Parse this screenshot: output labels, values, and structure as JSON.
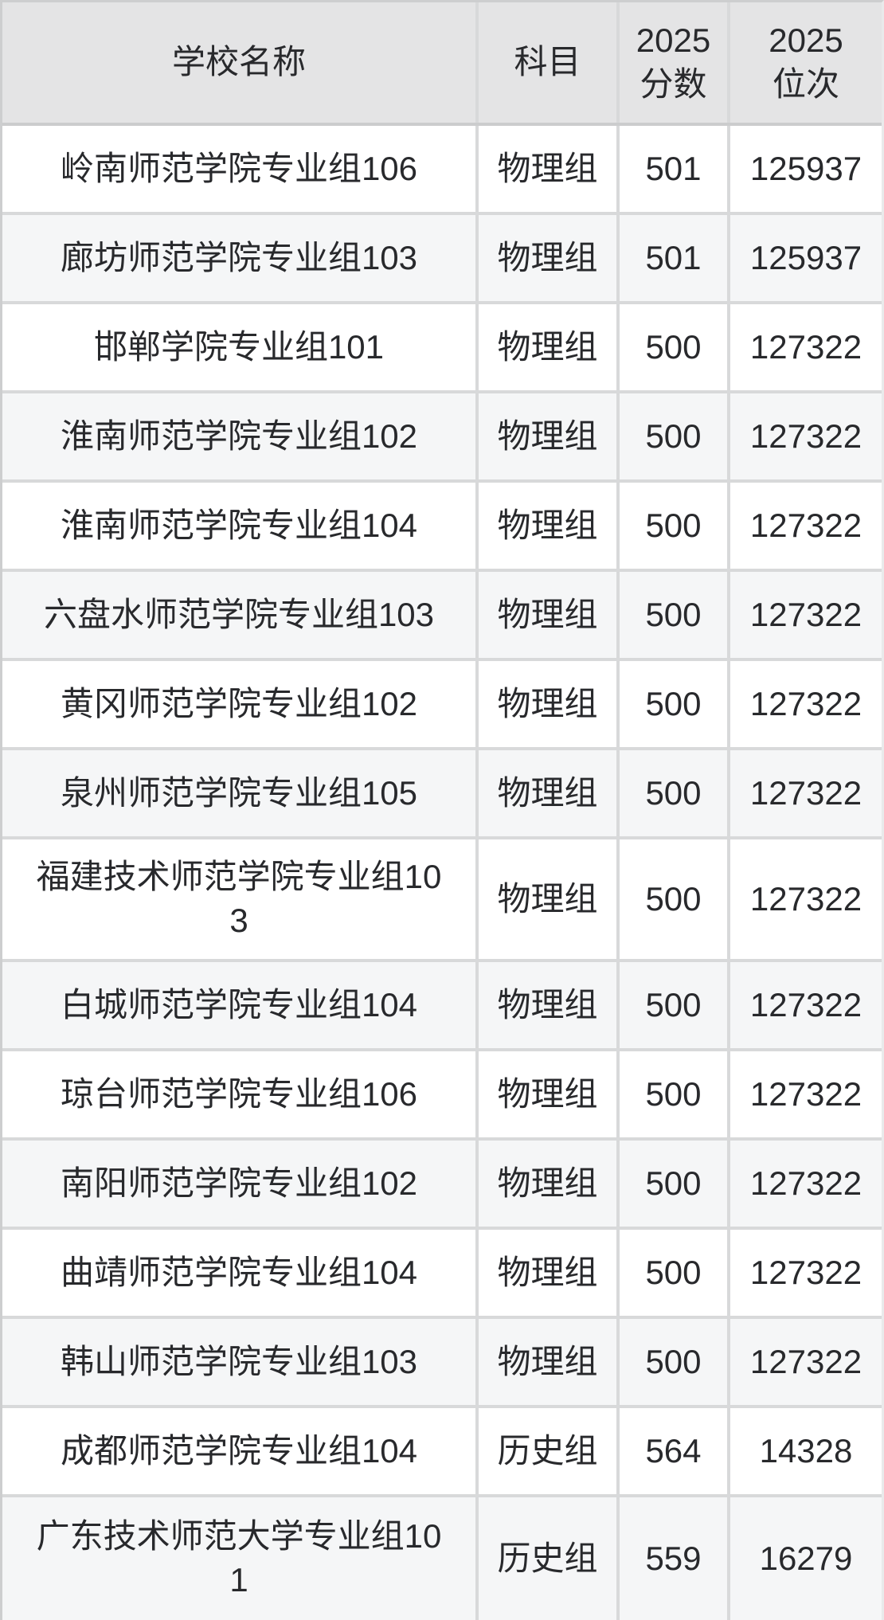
{
  "table": {
    "columns": [
      {
        "label": "学校名称"
      },
      {
        "label": "科目"
      },
      {
        "label": "2025\n分数"
      },
      {
        "label": "2025\n位次"
      }
    ],
    "rows": [
      {
        "school": "岭南师范学院专业组106",
        "subject": "物理组",
        "score": "501",
        "rank": "125937"
      },
      {
        "school": "廊坊师范学院专业组103",
        "subject": "物理组",
        "score": "501",
        "rank": "125937"
      },
      {
        "school": "邯郸学院专业组101",
        "subject": "物理组",
        "score": "500",
        "rank": "127322"
      },
      {
        "school": "淮南师范学院专业组102",
        "subject": "物理组",
        "score": "500",
        "rank": "127322"
      },
      {
        "school": "淮南师范学院专业组104",
        "subject": "物理组",
        "score": "500",
        "rank": "127322"
      },
      {
        "school": "六盘水师范学院专业组103",
        "subject": "物理组",
        "score": "500",
        "rank": "127322"
      },
      {
        "school": "黄冈师范学院专业组102",
        "subject": "物理组",
        "score": "500",
        "rank": "127322"
      },
      {
        "school": "泉州师范学院专业组105",
        "subject": "物理组",
        "score": "500",
        "rank": "127322"
      },
      {
        "school": "福建技术师范学院专业组103",
        "subject": "物理组",
        "score": "500",
        "rank": "127322"
      },
      {
        "school": "白城师范学院专业组104",
        "subject": "物理组",
        "score": "500",
        "rank": "127322"
      },
      {
        "school": "琼台师范学院专业组106",
        "subject": "物理组",
        "score": "500",
        "rank": "127322"
      },
      {
        "school": "南阳师范学院专业组102",
        "subject": "物理组",
        "score": "500",
        "rank": "127322"
      },
      {
        "school": "曲靖师范学院专业组104",
        "subject": "物理组",
        "score": "500",
        "rank": "127322"
      },
      {
        "school": "韩山师范学院专业组103",
        "subject": "物理组",
        "score": "500",
        "rank": "127322"
      },
      {
        "school": "成都师范学院专业组104",
        "subject": "历史组",
        "score": "564",
        "rank": "14328"
      },
      {
        "school": "广东技术师范大学专业组101",
        "subject": "历史组",
        "score": "559",
        "rank": "16279"
      }
    ]
  },
  "colors": {
    "header_bg": "#e4e4e5",
    "row_bg": "#ffffff",
    "stripe_bg": "#f5f6f7",
    "separator": "#d8d9da",
    "header_separator": "#cbcccd",
    "outer_border": "#cdcecf",
    "text": "#28292c"
  },
  "chart_data": {
    "type": "table",
    "columns": [
      "学校名称",
      "科目",
      "2025分数",
      "2025位次"
    ],
    "rows": [
      [
        "岭南师范学院专业组106",
        "物理组",
        501,
        125937
      ],
      [
        "廊坊师范学院专业组103",
        "物理组",
        501,
        125937
      ],
      [
        "邯郸学院专业组101",
        "物理组",
        500,
        127322
      ],
      [
        "淮南师范学院专业组102",
        "物理组",
        500,
        127322
      ],
      [
        "淮南师范学院专业组104",
        "物理组",
        500,
        127322
      ],
      [
        "六盘水师范学院专业组103",
        "物理组",
        500,
        127322
      ],
      [
        "黄冈师范学院专业组102",
        "物理组",
        500,
        127322
      ],
      [
        "泉州师范学院专业组105",
        "物理组",
        500,
        127322
      ],
      [
        "福建技术师范学院专业组103",
        "物理组",
        500,
        127322
      ],
      [
        "白城师范学院专业组104",
        "物理组",
        500,
        127322
      ],
      [
        "琼台师范学院专业组106",
        "物理组",
        500,
        127322
      ],
      [
        "南阳师范学院专业组102",
        "物理组",
        500,
        127322
      ],
      [
        "曲靖师范学院专业组104",
        "物理组",
        500,
        127322
      ],
      [
        "韩山师范学院专业组103",
        "物理组",
        500,
        127322
      ],
      [
        "成都师范学院专业组104",
        "历史组",
        564,
        14328
      ],
      [
        "广东技术师范大学专业组101",
        "历史组",
        559,
        16279
      ]
    ]
  }
}
